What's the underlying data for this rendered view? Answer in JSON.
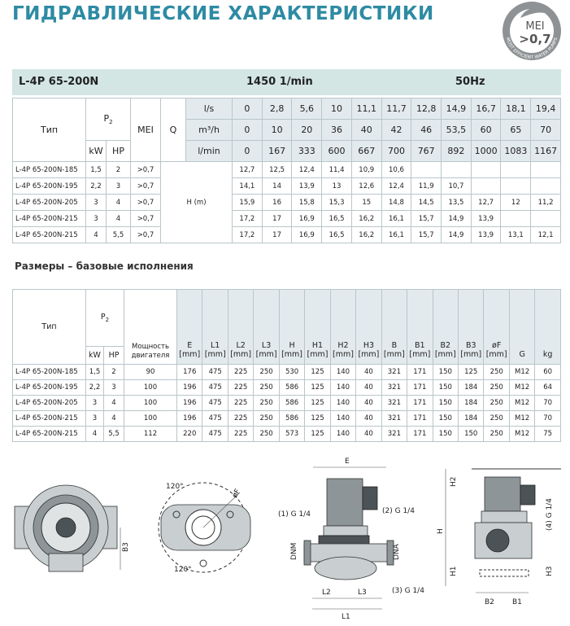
{
  "header": {
    "title": "ГИДРАВЛИЧЕСКИЕ ХАРАКТЕРИСТИКИ",
    "badge": {
      "label": "MEI",
      "value": ">0,7",
      "ring": "MOST EFFICIENT WATER PUMPS"
    }
  },
  "performance": {
    "model": "L-4P 65-200N",
    "speed": "1450 1/min",
    "frequency": "50Hz",
    "headers": {
      "type": "Тип",
      "power": "P",
      "power_sub": "2",
      "kw": "kW",
      "hp": "HP",
      "mei": "MEI",
      "q": "Q",
      "head": "H (m)"
    },
    "flow": [
      {
        "unit": "l/s",
        "values": [
          "0",
          "2,8",
          "5,6",
          "10",
          "11,1",
          "11,7",
          "12,8",
          "14,9",
          "16,7",
          "18,1",
          "19,4"
        ]
      },
      {
        "unit": "m³/h",
        "values": [
          "0",
          "10",
          "20",
          "36",
          "40",
          "42",
          "46",
          "53,5",
          "60",
          "65",
          "70"
        ]
      },
      {
        "unit": "l/min",
        "values": [
          "0",
          "167",
          "333",
          "600",
          "667",
          "700",
          "767",
          "892",
          "1000",
          "1083",
          "1167"
        ]
      }
    ],
    "rows": [
      {
        "type": "L-4P 65-200N-185",
        "kw": "1,5",
        "hp": "2",
        "mei": ">0,7",
        "head": [
          "12,7",
          "12,5",
          "12,4",
          "11,4",
          "10,9",
          "10,6"
        ]
      },
      {
        "type": "L-4P 65-200N-195",
        "kw": "2,2",
        "hp": "3",
        "mei": ">0,7",
        "head": [
          "14,1",
          "14",
          "13,9",
          "13",
          "12,6",
          "12,4",
          "11,9",
          "10,7"
        ]
      },
      {
        "type": "L-4P 65-200N-205",
        "kw": "3",
        "hp": "4",
        "mei": ">0,7",
        "head": [
          "15,9",
          "16",
          "15,8",
          "15,3",
          "15",
          "14,8",
          "14,5",
          "13,5",
          "12,7",
          "12",
          "11,2"
        ]
      },
      {
        "type": "L-4P 65-200N-215",
        "kw": "3",
        "hp": "4",
        "mei": ">0,7",
        "head": [
          "17,2",
          "17",
          "16,9",
          "16,5",
          "16,2",
          "16,1",
          "15,7",
          "14,9",
          "13,9"
        ]
      },
      {
        "type": "L-4P 65-200N-215",
        "kw": "4",
        "hp": "5,5",
        "mei": ">0,7",
        "head": [
          "17,2",
          "17",
          "16,9",
          "16,5",
          "16,2",
          "16,1",
          "15,7",
          "14,9",
          "13,9",
          "13,1",
          "12,1"
        ]
      }
    ]
  },
  "dimensions": {
    "title": "Размеры – базовые исполнения",
    "headers": {
      "type": "Тип",
      "power": "P",
      "power_sub": "2",
      "kw": "kW",
      "hp": "HP",
      "motor": "Мощность двигателя"
    },
    "columns": [
      {
        "name": "E",
        "unit": "[mm]"
      },
      {
        "name": "L1",
        "unit": "[mm]"
      },
      {
        "name": "L2",
        "unit": "[mm]"
      },
      {
        "name": "L3",
        "unit": "[mm]"
      },
      {
        "name": "H",
        "unit": "[mm]"
      },
      {
        "name": "H1",
        "unit": "[mm]"
      },
      {
        "name": "H2",
        "unit": "[mm]"
      },
      {
        "name": "H3",
        "unit": "[mm]"
      },
      {
        "name": "B",
        "unit": "[mm]"
      },
      {
        "name": "B1",
        "unit": "[mm]"
      },
      {
        "name": "B2",
        "unit": "[mm]"
      },
      {
        "name": "B3",
        "unit": "[mm]"
      },
      {
        "name": "øF",
        "unit": "[mm]"
      },
      {
        "name": "G"
      },
      {
        "name": "kg"
      }
    ],
    "rows": [
      {
        "type": "L-4P 65-200N-185",
        "kw": "1,5",
        "hp": "2",
        "values": [
          "90",
          "176",
          "475",
          "225",
          "250",
          "530",
          "125",
          "140",
          "40",
          "321",
          "171",
          "150",
          "125",
          "250",
          "M12",
          "60"
        ]
      },
      {
        "type": "L-4P 65-200N-195",
        "kw": "2,2",
        "hp": "3",
        "values": [
          "100",
          "196",
          "475",
          "225",
          "250",
          "586",
          "125",
          "140",
          "40",
          "321",
          "171",
          "150",
          "184",
          "250",
          "M12",
          "64"
        ]
      },
      {
        "type": "L-4P 65-200N-205",
        "kw": "3",
        "hp": "4",
        "values": [
          "100",
          "196",
          "475",
          "225",
          "250",
          "586",
          "125",
          "140",
          "40",
          "321",
          "171",
          "150",
          "184",
          "250",
          "M12",
          "70"
        ]
      },
      {
        "type": "L-4P 65-200N-215",
        "kw": "3",
        "hp": "4",
        "values": [
          "100",
          "196",
          "475",
          "225",
          "250",
          "586",
          "125",
          "140",
          "40",
          "321",
          "171",
          "150",
          "184",
          "250",
          "M12",
          "70"
        ]
      },
      {
        "type": "L-4P 65-200N-215",
        "kw": "4",
        "hp": "5,5",
        "values": [
          "112",
          "220",
          "475",
          "225",
          "250",
          "573",
          "125",
          "140",
          "40",
          "321",
          "171",
          "150",
          "150",
          "250",
          "M12",
          "75"
        ]
      }
    ]
  },
  "drawings": {
    "labels": [
      "B3",
      "120°",
      "øF",
      "120°",
      "E",
      "(1) G 1/4",
      "(2) G 1/4",
      "DNM",
      "DNA",
      "L2",
      "L3",
      "L1",
      "(3) G 1/4",
      "H2",
      "H",
      "H1",
      "H3",
      "(4) G 1/4",
      "B2",
      "B1"
    ]
  }
}
